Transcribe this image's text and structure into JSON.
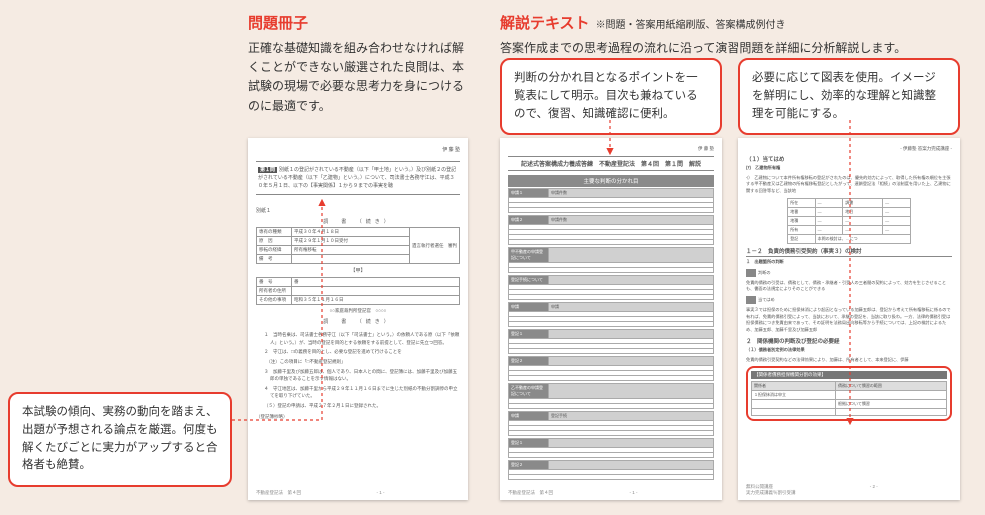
{
  "colors": {
    "accent": "#e73c2e",
    "page_bg": "#f5ebe3",
    "band_gray": "#8a8a8a"
  },
  "left_section": {
    "title": "問題冊子",
    "title_color": "#e73c2e",
    "desc": "正確な基礎知識を組み合わせなければ解くことができない厳選された良問は、本試験の現場で必要な思考力を身につけるのに最適です。"
  },
  "right_section": {
    "title": "解説テキスト",
    "title_color": "#e73c2e",
    "note": "※問題・答案用紙縮刷版、答案構成例付き",
    "desc": "答案作成までの思考過程の流れに沿って演習問題を詳細に分析解説します。"
  },
  "callouts": {
    "bottom_left": "本試験の傾向、実務の動向を踏まえ、出題が予想される論点を厳選。何度も解くたびごとに実力がアップすると合格者も絶賛。",
    "middle": "判断の分かれ目となるポイントを一覧表にして明示。目次も兼ねているので、復習、知識確認に便利。",
    "right": "必要に応じて図表を使用。イメージを鮮明にし、効率的な理解と知識整理を可能にする。"
  },
  "page_left": {
    "header": "伊 藤 塾",
    "q_num": "第１問",
    "q_body": "別紙１の登記がされている不動産（以下「甲土地」という。）及び別紙２の登記がされている不動産（以下「乙建物」という。）について、司法書士各務守江は、平成３０年５月１日、以下の【事実関係】１から９までの事実を聴",
    "attach_label": "別紙１",
    "form_title": "調　書　（続き）",
    "table_rows": [
      {
        "l": "専有の種類",
        "r": "平成３０年４月１８日"
      },
      {
        "l": "原　因",
        "r": "平成２９年１月１０日受付"
      },
      {
        "l": "移転の経緯",
        "r": "所有権移転"
      },
      {
        "l": "備　考",
        "r": ""
      }
    ],
    "sub_header": "【甲】",
    "sub_rows": [
      {
        "l": "番　号",
        "r": "番"
      },
      {
        "l": "所有者の住所",
        "r": ""
      },
      {
        "l": "その他の事項",
        "r": "昭和３５年１１月１６日"
      }
    ],
    "mid_band": "○○家庭裁判所登記官　○○○○",
    "form_title2": "調　書　（続き）",
    "notes": [
      "１　当時名乗は、司法書士各務守江（以下「司法書士」という。）の依頼人である原（以下「依頼人」という。）が、当時の登記を目的とする依頼をする前提として、登記に先立つ回答。",
      "２　守江は、□の義務を目的とし、必要な登記を進めて行けることを",
      "　（注）この項目に「□不動産登記規則」",
      "３　加藤千里及び加藤五郎は、個人であり、日本人との間に、登記簿には、加藤千里及び加藤五郎の単独であることを示す情報はない。",
      "４　守江地区は、加藤千里から平成２９年１１月１６日までに生じた別紙の不動分割調停の申立てを取り下げていた。",
      "（５）登記の申請は、平成２７年２月１日に登録された。"
    ],
    "foot_note": "（登記簿抄略）",
    "foot_l": "不動産登記法　第４回",
    "foot_c": "- 1 -"
  },
  "page_mid": {
    "header": "伊 藤 塾",
    "title": "記述式答案構成力養成答練　不動産登記法　第４回　第１問　解説",
    "band": "主要な判断の分かれ目",
    "groups": [
      {
        "h": "申請１",
        "sub": "申請件数",
        "lines": 3
      },
      {
        "h": "申請２",
        "sub": "申請件数",
        "lines": 4
      },
      {
        "h": "甲不動産の申請登記について",
        "sub": "",
        "lines": 2
      },
      {
        "h": "登記手続について",
        "sub": "",
        "lines": 3
      },
      {
        "h": "申請",
        "sub": "申請",
        "lines": 3
      },
      {
        "h": "登記１",
        "sub": "",
        "lines": 3
      },
      {
        "h": "登記２",
        "sub": "",
        "lines": 3
      },
      {
        "h": "乙不動産の申請登記について",
        "sub": "",
        "lines": 2
      },
      {
        "h": "申請",
        "sub": "登記手続",
        "lines": 3
      },
      {
        "h": "登記１",
        "sub": "",
        "lines": 2
      },
      {
        "h": "登記２",
        "sub": "",
        "lines": 2
      }
    ],
    "foot_l": "不動産登記法　第４回",
    "foot_c": "- 1 -"
  },
  "page_right": {
    "sec1_title": "（１）当てはめ",
    "sec1_sub": "(ｱ)　乙建物所有権",
    "sec1_txt": "ｲ）　乙建物について本件所有権移転の登記がされたのは、優先的効力によって、取得した所有権の順位を主張する甲不動産又は乙建物の所有権移転登記としたがって、連鎖登記法「相続」の法制度を用いた上、乙建物に関する回答等など、当該地",
    "mini_table_rows": 5,
    "sec2_title": "１－２　負責的債務引受契約（事実３）の検討",
    "sec2_sub1": "１　出題箇所の判断",
    "sec2_icon1": "判断の",
    "sec2_txt1": "免責的債務の引受は、債務として、債務・承継者・引受人の三者間の契約によって、効力を生じさせることも、書面の法規定によりそのことができる",
    "sec2_sub2": "当てはめ",
    "sec2_txt2": "事実３では担保のために担保抹消により起因となっている加藤五郎は、登記から考えて所有権移転に係るので有れば、免責的債務引受によって、当該において、承継の登記を、当該に取り扱わ。一方、法律的債務引受は担保債務につき免責由来であって、その証明を法務局出向移転等から手続については、上記の検討によるため、加藤五郎、加藤千里及び加藤五郎",
    "sec3_title": "２　関係機関の判断及び登記の必要経",
    "sec3_sub": "（１）債務者別定例の法律効果",
    "sec3_txt": "免責的債務引受契約などの法律効果により、加藤は、所有者として、本来登記に、伊藤",
    "highlight_title": "【関係者債務担保機関分割の効果】",
    "highlight_rows": [
      {
        "l": "関係者",
        "r": "債務について慣習の範囲"
      },
      {
        "l": "１担保抹消は申立",
        "r": ""
      },
      {
        "l": "",
        "r": "根拠について慣習"
      },
      {
        "l": "",
        "r": ""
      }
    ],
    "foot_l": "無料公開講座",
    "foot_l2": "実力完成講義％割引受講",
    "foot_c": "- 2 -"
  }
}
